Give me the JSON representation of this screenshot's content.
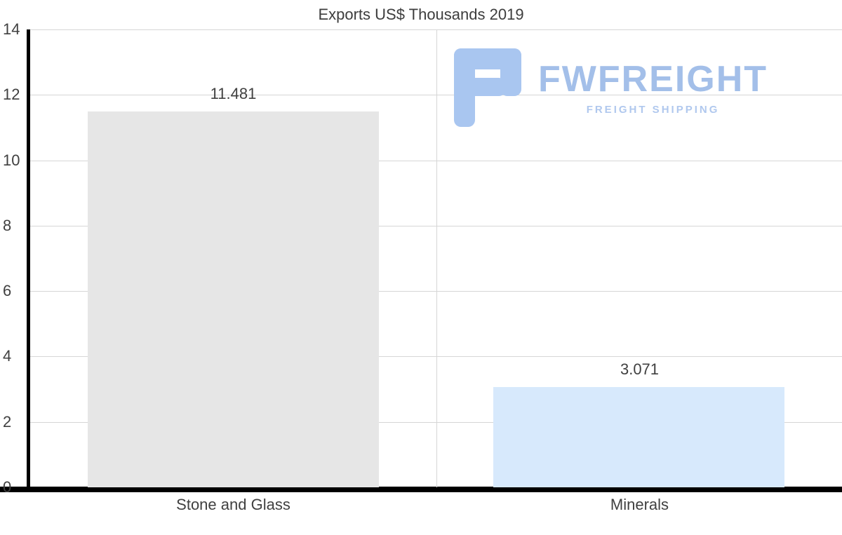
{
  "chart_data": {
    "type": "bar",
    "title": "Exports US$ Thousands 2019",
    "categories": [
      "Stone and Glass",
      "Minerals"
    ],
    "values": [
      11.481,
      3.071
    ],
    "value_labels": [
      "11.481",
      "3.071"
    ],
    "bar_colors": [
      "#e6e6e6",
      "#d7e9fc"
    ],
    "xlabel": "",
    "ylabel": "",
    "ylim": [
      0,
      14
    ],
    "yticks": [
      0,
      2,
      4,
      6,
      8,
      10,
      12,
      14
    ],
    "grid": "horizontal gridlines at each y tick, vertical gridline at category boundary",
    "legend": "none",
    "colors": {
      "gridline": "#d6d6d6",
      "axis": "#000000",
      "text": "#404040"
    }
  },
  "watermark": {
    "brand": "FWFREIGHT",
    "tagline": "FREIGHT SHIPPING",
    "logo_icon": "stylized-f-icon",
    "color": "#a3bfe9"
  }
}
